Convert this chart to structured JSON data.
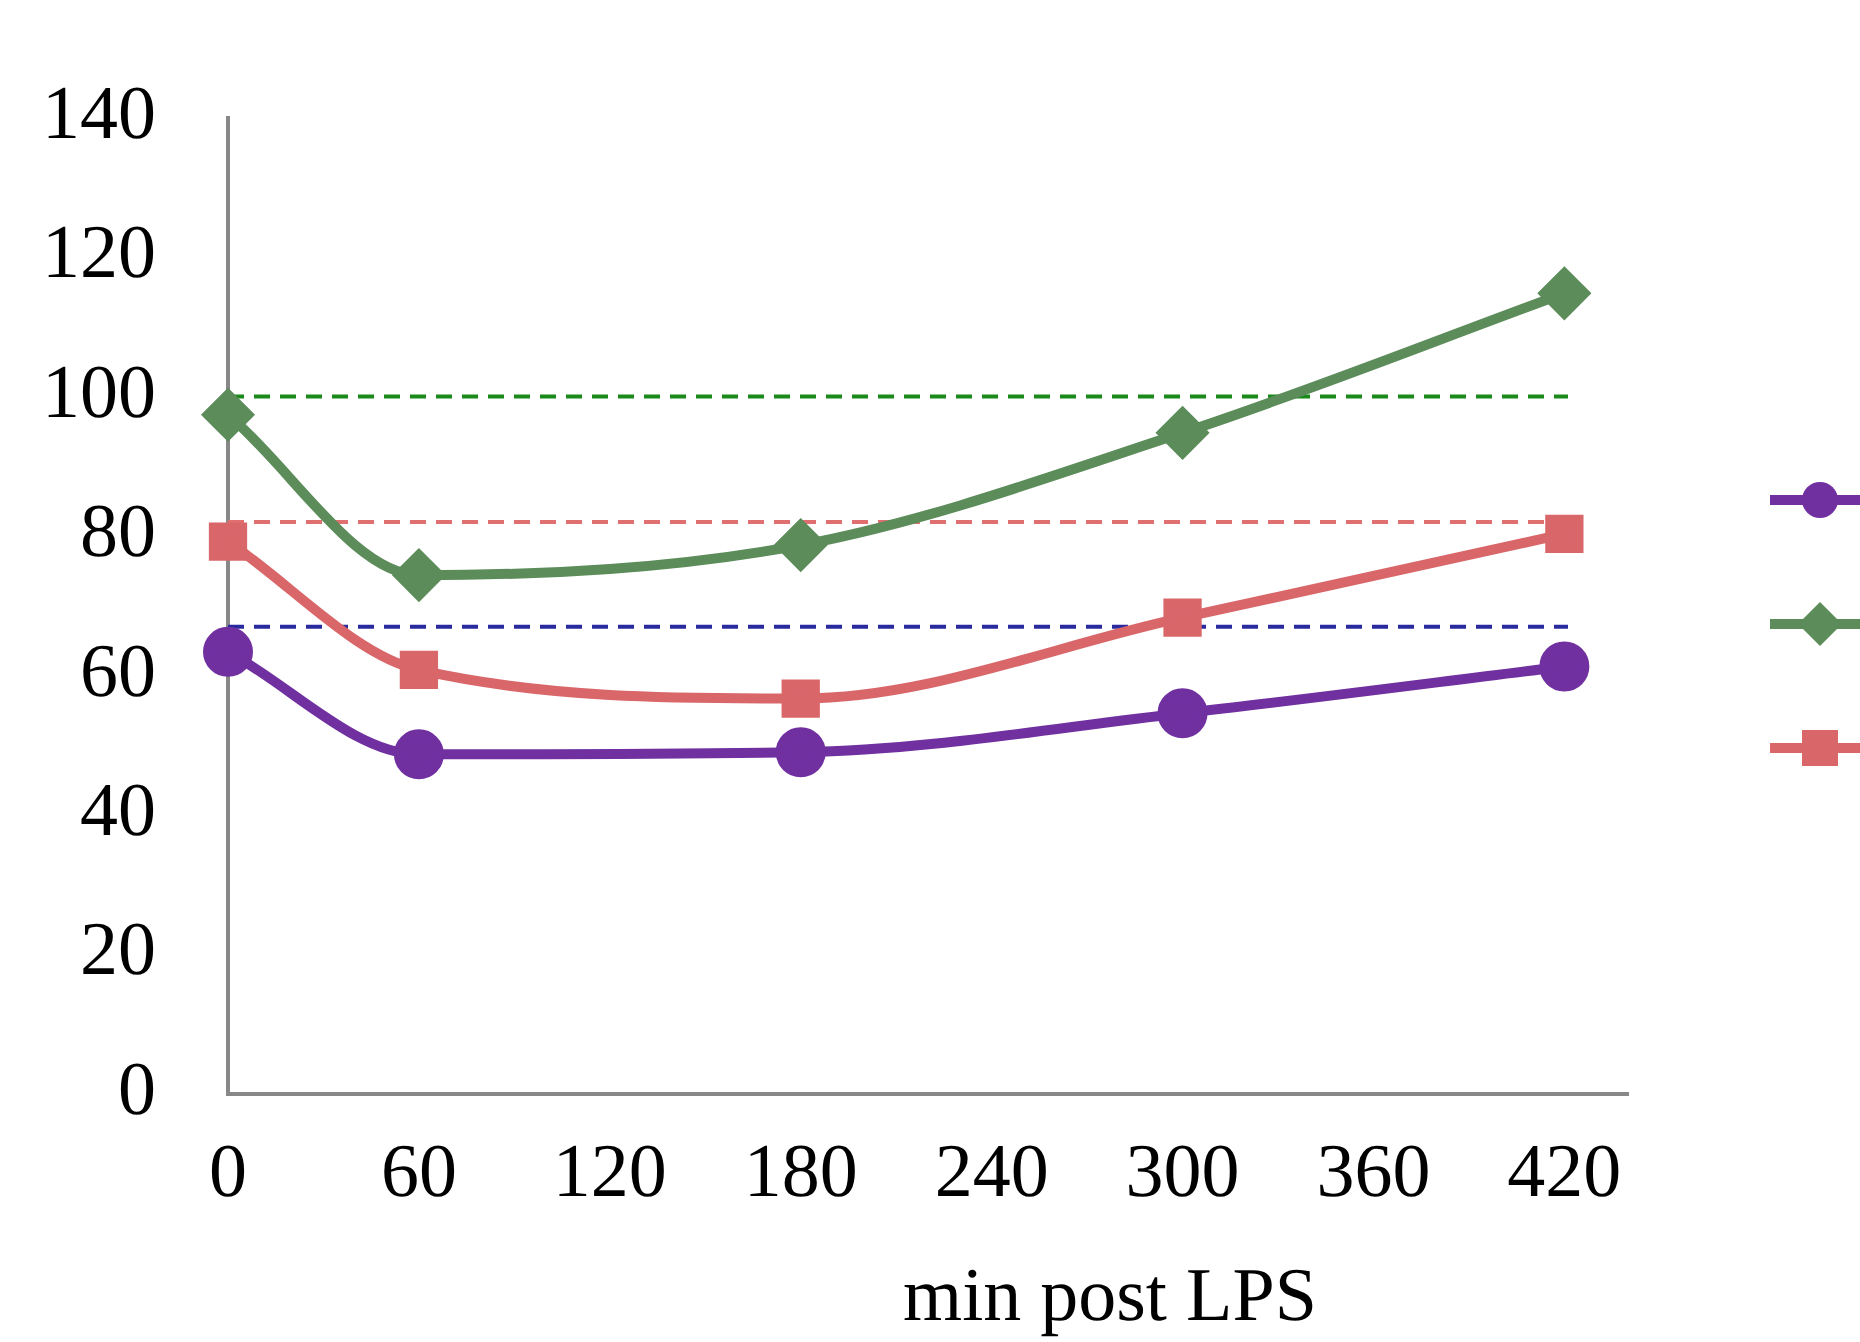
{
  "chart_data": {
    "type": "line",
    "xlabel": "min post LPS",
    "x": [
      0,
      60,
      180,
      300,
      420
    ],
    "series": [
      {
        "color": "#7030a0",
        "marker": "circle",
        "values": [
          63.4,
          48.7,
          49,
          54.6,
          61.3
        ]
      },
      {
        "color": "#5b8c5a",
        "marker": "diamond",
        "values": [
          97.4,
          74.4,
          78.7,
          94.8,
          114.8
        ]
      },
      {
        "color": "#d9676a",
        "marker": "square",
        "values": [
          79.2,
          60.8,
          56.7,
          68.3,
          80.3
        ]
      }
    ],
    "ref_lines": [
      {
        "axis": "y",
        "value": 100,
        "color": "#1a8a1a",
        "line_style": "dashed"
      },
      {
        "axis": "y",
        "value": 82,
        "color": "#e07070",
        "line_style": "dashed"
      },
      {
        "axis": "y",
        "value": 67,
        "color": "#2a2aa0",
        "line_style": "dashed"
      }
    ],
    "grid": false,
    "xlim": [
      0,
      440
    ],
    "xticks": [
      0,
      60,
      120,
      180,
      240,
      300,
      360,
      420
    ],
    "ylim": [
      0,
      140
    ],
    "yticks": [
      0,
      20,
      40,
      60,
      80,
      100,
      120,
      140
    ]
  }
}
